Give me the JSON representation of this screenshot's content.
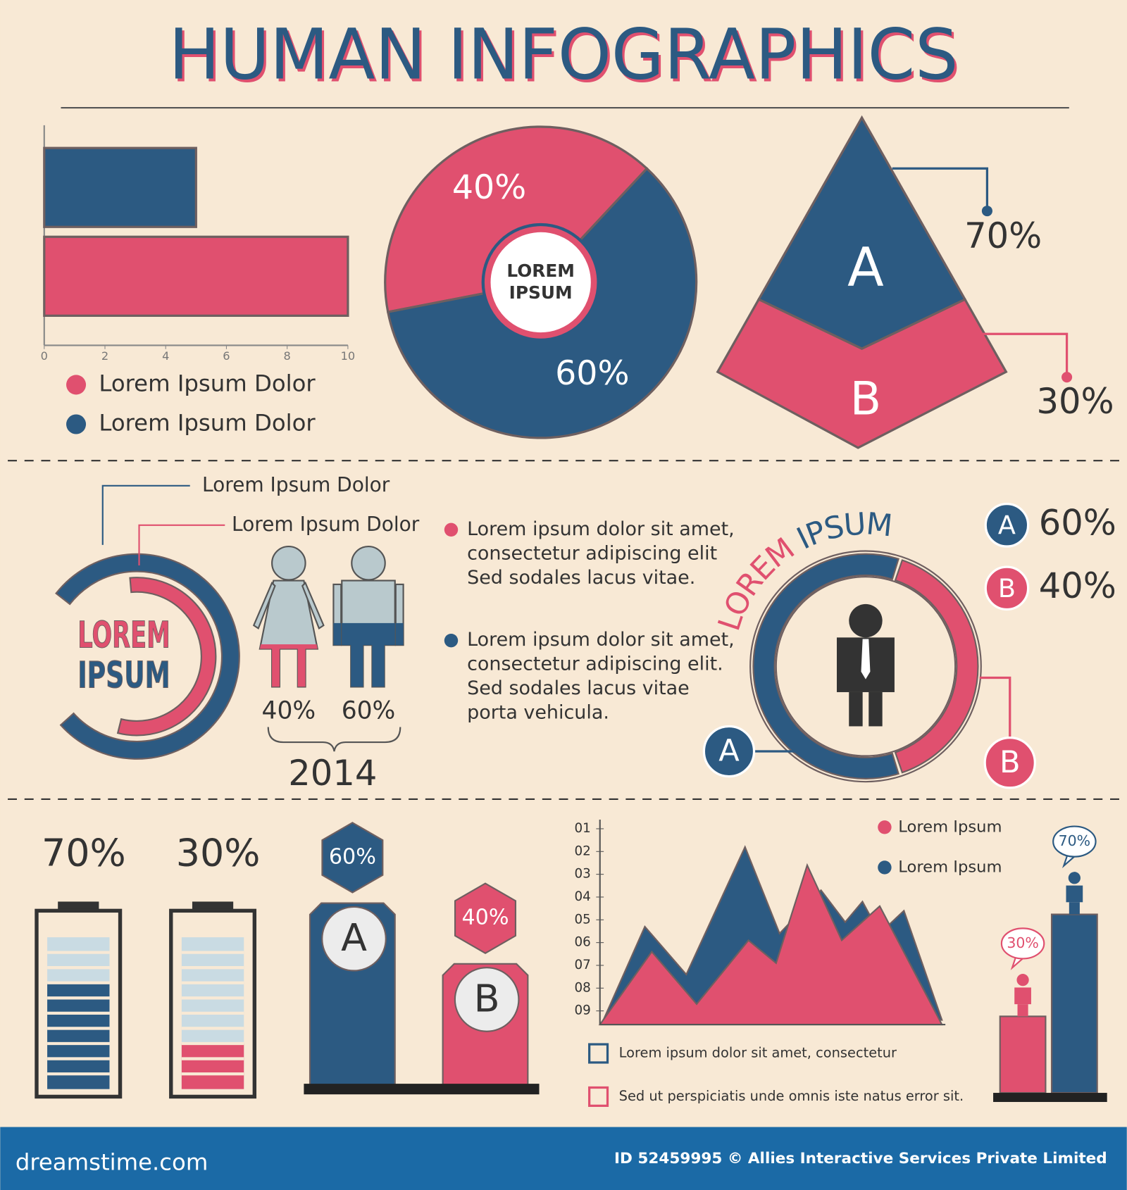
{
  "title": "HUMAN INFOGRAPHICS",
  "chart_data": [
    {
      "type": "barh",
      "xlim": [
        0,
        10
      ],
      "xticks": [
        0,
        2,
        4,
        6,
        8,
        10
      ],
      "series": [
        {
          "name": "Lorem Ipsum Dolor",
          "color": "#e0506f",
          "values": [
            10
          ]
        },
        {
          "name": "Lorem Ipsum Dolor",
          "color": "#2c5a82",
          "values": [
            5
          ]
        }
      ]
    },
    {
      "type": "donut",
      "center_label": [
        "LOREM",
        "IPSUM"
      ],
      "values": [
        40,
        60
      ],
      "value_labels": [
        "40%",
        "60%"
      ],
      "colors": [
        "#e0506f",
        "#2c5a82"
      ]
    },
    {
      "type": "pyramid",
      "categories": [
        "A",
        "B"
      ],
      "values": [
        70,
        30
      ],
      "value_labels": [
        "70%",
        "30%"
      ],
      "colors": [
        "#2c5a82",
        "#e0506f"
      ]
    },
    {
      "type": "pictogram",
      "values": [
        40,
        60
      ],
      "value_labels": [
        "40%",
        "60%"
      ],
      "colors": [
        "#e0506f",
        "#2c5a82"
      ],
      "caption": "2014"
    },
    {
      "type": "ring",
      "title": [
        "LOREM",
        "IPSUM"
      ],
      "categories": [
        "A",
        "B"
      ],
      "values": [
        60,
        40
      ],
      "value_labels": [
        "60%",
        "40%"
      ],
      "colors": [
        "#2c5a82",
        "#e0506f"
      ]
    },
    {
      "type": "battery",
      "values": [
        70,
        30
      ],
      "value_labels": [
        "70%",
        "30%"
      ],
      "colors": [
        "#2c5a82",
        "#e0506f"
      ]
    },
    {
      "type": "hexbar",
      "categories": [
        "A",
        "B"
      ],
      "values": [
        60,
        40
      ],
      "value_labels": [
        "60%",
        "40%"
      ],
      "colors": [
        "#2c5a82",
        "#e0506f"
      ]
    },
    {
      "type": "area",
      "xlim": [
        0,
        100
      ],
      "ylim": [
        9.6,
        0.6
      ],
      "yticks": [
        {
          "value": 1,
          "label": "01"
        },
        {
          "value": 2,
          "label": "02"
        },
        {
          "value": 3,
          "label": "03"
        },
        {
          "value": 4,
          "label": "04"
        },
        {
          "value": 5,
          "label": "05"
        },
        {
          "value": 6,
          "label": "06"
        },
        {
          "value": 7,
          "label": "07"
        },
        {
          "value": 8,
          "label": "08"
        },
        {
          "value": 9,
          "label": "09"
        }
      ],
      "series": [
        {
          "name": "Lorem Ipsum",
          "color": "#e0506f",
          "x": [
            0,
            15,
            28,
            43,
            51,
            60,
            70,
            81,
            99
          ],
          "values": [
            9.6,
            6.4,
            8.7,
            5.9,
            6.9,
            2.6,
            5.9,
            4.4,
            9.6
          ]
        },
        {
          "name": "Lorem Ipsum",
          "color": "#2c5a82",
          "x": [
            1,
            13,
            25,
            42,
            52,
            64,
            71,
            76,
            81,
            88,
            99
          ],
          "values": [
            9.4,
            5.3,
            7.4,
            1.8,
            5.6,
            3.7,
            5.1,
            4.2,
            5.6,
            4.6,
            9.4
          ]
        }
      ],
      "notes": [
        {
          "text": "Lorem ipsum dolor sit amet, consectetur",
          "color": "#2c5a82"
        },
        {
          "text": "Sed ut perspiciatis unde omnis iste natus error sit.",
          "color": "#e0506f"
        }
      ]
    },
    {
      "type": "people_bar",
      "values": [
        30,
        70
      ],
      "value_labels": [
        "30%",
        "70%"
      ],
      "colors": [
        "#e0506f",
        "#2c5a82"
      ]
    }
  ],
  "arc_panel": {
    "center": [
      "LOREM",
      "IPSUM"
    ],
    "labels": [
      "Lorem Ipsum Dolor",
      "Lorem Ipsum Dolor"
    ]
  },
  "bullets": [
    {
      "color": "#e0506f",
      "lines": [
        "Lorem ipsum dolor sit amet,",
        "consectetur adipiscing elit",
        "Sed sodales lacus vitae."
      ]
    },
    {
      "color": "#2c5a82",
      "lines": [
        "Lorem ipsum dolor sit amet,",
        "consectetur adipiscing elit.",
        "Sed sodales lacus vitae",
        "porta vehicula."
      ]
    }
  ],
  "footer": {
    "site": "dreamstime.com",
    "credit": "ID 52459995 © Allies Interactive Services Private Limited"
  }
}
